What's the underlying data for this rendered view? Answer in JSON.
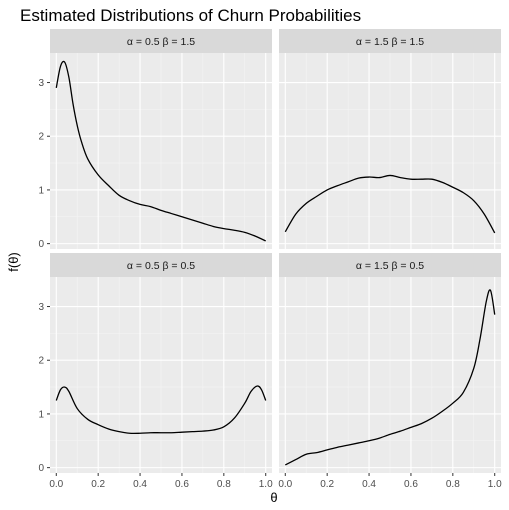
{
  "chart_data": {
    "type": "line",
    "title": "Estimated Distributions of Churn Probabilities",
    "xlabel": "θ",
    "ylabel": "f(θ)",
    "xlim": [
      -0.03,
      1.03
    ],
    "ylim": [
      -0.1,
      3.55
    ],
    "x_ticks": [
      0,
      0.2,
      0.4,
      0.6,
      0.8,
      1
    ],
    "x_tick_labels": [
      "0.0",
      "0.2",
      "0.4",
      "0.6",
      "0.8",
      "1.0"
    ],
    "y_ticks": [
      0,
      1,
      2,
      3
    ],
    "y_tick_labels": [
      "0",
      "1",
      "2",
      "3"
    ],
    "grid": true,
    "panels": [
      {
        "strip": "α = 0.5  β = 1.5",
        "row": 0,
        "col": 0,
        "x": [
          0,
          0.02,
          0.04,
          0.06,
          0.08,
          0.1,
          0.12,
          0.15,
          0.2,
          0.25,
          0.3,
          0.35,
          0.4,
          0.45,
          0.5,
          0.55,
          0.6,
          0.65,
          0.7,
          0.75,
          0.8,
          0.85,
          0.9,
          0.95,
          1.0
        ],
        "y": [
          2.9,
          3.3,
          3.38,
          3.1,
          2.6,
          2.2,
          1.9,
          1.58,
          1.28,
          1.08,
          0.9,
          0.8,
          0.73,
          0.69,
          0.62,
          0.56,
          0.5,
          0.44,
          0.38,
          0.32,
          0.28,
          0.25,
          0.21,
          0.14,
          0.05
        ]
      },
      {
        "strip": "α = 1.5  β = 1.5",
        "row": 0,
        "col": 1,
        "x": [
          0,
          0.05,
          0.1,
          0.15,
          0.2,
          0.25,
          0.3,
          0.35,
          0.4,
          0.45,
          0.5,
          0.55,
          0.6,
          0.65,
          0.7,
          0.75,
          0.8,
          0.85,
          0.9,
          0.95,
          1.0
        ],
        "y": [
          0.22,
          0.55,
          0.75,
          0.88,
          1.0,
          1.08,
          1.15,
          1.22,
          1.24,
          1.23,
          1.27,
          1.23,
          1.2,
          1.2,
          1.2,
          1.14,
          1.05,
          0.95,
          0.8,
          0.55,
          0.2
        ]
      },
      {
        "strip": "α = 0.5  β = 0.5",
        "row": 1,
        "col": 0,
        "x": [
          0,
          0.02,
          0.04,
          0.06,
          0.1,
          0.15,
          0.2,
          0.25,
          0.3,
          0.35,
          0.4,
          0.45,
          0.5,
          0.55,
          0.6,
          0.65,
          0.7,
          0.75,
          0.8,
          0.85,
          0.9,
          0.93,
          0.96,
          0.98,
          1.0
        ],
        "y": [
          1.25,
          1.45,
          1.5,
          1.42,
          1.1,
          0.9,
          0.8,
          0.72,
          0.67,
          0.64,
          0.64,
          0.65,
          0.65,
          0.65,
          0.66,
          0.67,
          0.68,
          0.7,
          0.76,
          0.92,
          1.2,
          1.42,
          1.52,
          1.45,
          1.25
        ]
      },
      {
        "strip": "α = 1.5  β = 0.5",
        "row": 1,
        "col": 1,
        "x": [
          0,
          0.05,
          0.1,
          0.15,
          0.2,
          0.25,
          0.3,
          0.35,
          0.4,
          0.45,
          0.5,
          0.55,
          0.6,
          0.65,
          0.7,
          0.75,
          0.8,
          0.85,
          0.9,
          0.93,
          0.96,
          0.98,
          1.0
        ],
        "y": [
          0.05,
          0.15,
          0.25,
          0.28,
          0.33,
          0.38,
          0.42,
          0.46,
          0.5,
          0.55,
          0.62,
          0.68,
          0.75,
          0.82,
          0.92,
          1.05,
          1.2,
          1.4,
          1.85,
          2.4,
          3.1,
          3.3,
          2.85
        ]
      }
    ]
  }
}
